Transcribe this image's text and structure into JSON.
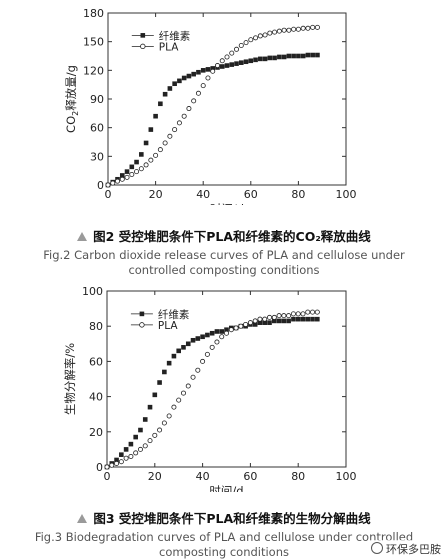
{
  "chart_data": [
    {
      "type": "scatter",
      "xlabel": "时间/d",
      "ylabel_main": "CO",
      "ylabel_sub": "2",
      "ylabel_rest": "释放量/g",
      "xlim": [
        0,
        100
      ],
      "ylim": [
        0,
        180
      ],
      "xticks": [
        0,
        20,
        40,
        60,
        80,
        100
      ],
      "yticks": [
        0,
        30,
        60,
        90,
        120,
        150,
        180
      ],
      "legend_position": "top-left",
      "x": [
        0,
        2,
        4,
        6,
        8,
        10,
        12,
        14,
        16,
        18,
        20,
        22,
        24,
        26,
        28,
        30,
        32,
        34,
        36,
        38,
        40,
        42,
        44,
        46,
        48,
        50,
        52,
        54,
        56,
        58,
        60,
        62,
        64,
        66,
        68,
        70,
        72,
        74,
        76,
        78,
        80,
        82,
        84,
        86,
        88
      ],
      "series": [
        {
          "name": "纤维素",
          "marker": "filled-square",
          "values": [
            0,
            3,
            6,
            10,
            14,
            19,
            24,
            32,
            44,
            58,
            72,
            85,
            95,
            101,
            106,
            109,
            112,
            114,
            116,
            118,
            120,
            121,
            122,
            123,
            124,
            125,
            126,
            127,
            128,
            129,
            130,
            131,
            132,
            132,
            133,
            133,
            134,
            134,
            135,
            135,
            135,
            135,
            136,
            136,
            136
          ]
        },
        {
          "name": "PLA",
          "marker": "open-circle",
          "values": [
            0,
            2,
            4,
            6,
            8,
            11,
            14,
            17,
            21,
            26,
            31,
            37,
            44,
            51,
            58,
            65,
            72,
            80,
            88,
            96,
            104,
            112,
            119,
            125,
            130,
            134,
            138,
            142,
            146,
            149,
            152,
            154,
            156,
            157,
            159,
            160,
            161,
            162,
            162,
            163,
            163,
            164,
            164,
            165,
            165
          ]
        }
      ]
    },
    {
      "type": "scatter",
      "xlabel": "时间/d",
      "ylabel": "生物分解率/%",
      "xlim": [
        0,
        100
      ],
      "ylim": [
        0,
        100
      ],
      "xticks": [
        0,
        20,
        40,
        60,
        80,
        100
      ],
      "yticks": [
        0,
        20,
        40,
        60,
        80,
        100
      ],
      "legend_position": "top-left",
      "x": [
        0,
        2,
        4,
        6,
        8,
        10,
        12,
        14,
        16,
        18,
        20,
        22,
        24,
        26,
        28,
        30,
        32,
        34,
        36,
        38,
        40,
        42,
        44,
        46,
        48,
        50,
        52,
        54,
        56,
        58,
        60,
        62,
        64,
        66,
        68,
        70,
        72,
        74,
        76,
        78,
        80,
        82,
        84,
        86,
        88
      ],
      "series": [
        {
          "name": "纤维素",
          "marker": "filled-square",
          "values": [
            0,
            2,
            4,
            7,
            10,
            13,
            17,
            21,
            27,
            34,
            41,
            48,
            54,
            59,
            63,
            66,
            68,
            70,
            72,
            73,
            74,
            75,
            76,
            77,
            77,
            78,
            79,
            79,
            80,
            80,
            81,
            81,
            82,
            82,
            82,
            83,
            83,
            83,
            83,
            84,
            84,
            84,
            84,
            84,
            84
          ]
        },
        {
          "name": "PLA",
          "marker": "open-circle",
          "values": [
            0,
            1,
            2,
            3,
            5,
            6,
            8,
            10,
            12,
            15,
            18,
            21,
            25,
            29,
            34,
            38,
            42,
            46,
            51,
            55,
            60,
            64,
            68,
            71,
            74,
            76,
            78,
            79,
            80,
            81,
            82,
            83,
            84,
            84,
            85,
            85,
            86,
            86,
            86,
            87,
            87,
            87,
            88,
            88,
            88
          ]
        }
      ]
    }
  ],
  "captions": [
    {
      "title": "图2 受控堆肥条件下PLA和纤维素的CO₂释放曲线",
      "en_line1": "Fig.2 Carbon dioxide release curves of PLA and cellulose under",
      "en_line2": "controlled composting conditions"
    },
    {
      "title": "图3 受控堆肥条件下PLA和纤维素的生物分解曲线",
      "en_line1": "Fig.3 Biodegradation curves of PLA and cellulose under controlled",
      "en_line2": "composting conditions"
    }
  ],
  "watermark": "环保多巴胺",
  "colors": {
    "marker": "#222222",
    "axis": "#333333",
    "caption_en": "#555555",
    "triangle": "#9a9a9a"
  }
}
